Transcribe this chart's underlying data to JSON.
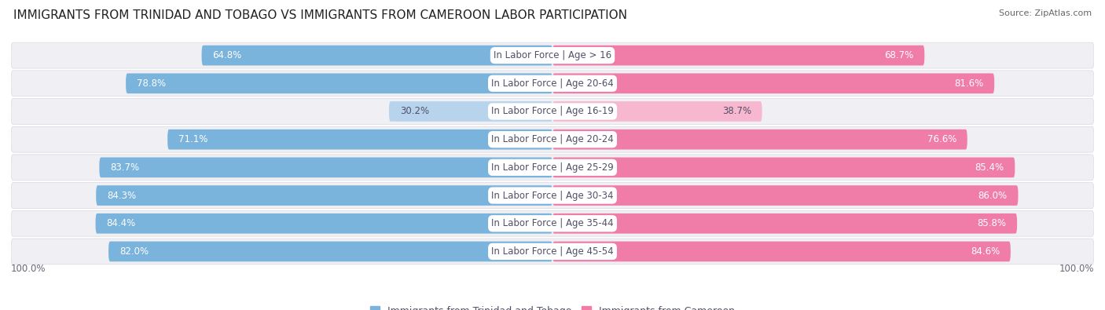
{
  "title": "IMMIGRANTS FROM TRINIDAD AND TOBAGO VS IMMIGRANTS FROM CAMEROON LABOR PARTICIPATION",
  "source": "Source: ZipAtlas.com",
  "categories": [
    "In Labor Force | Age > 16",
    "In Labor Force | Age 20-64",
    "In Labor Force | Age 16-19",
    "In Labor Force | Age 20-24",
    "In Labor Force | Age 25-29",
    "In Labor Force | Age 30-34",
    "In Labor Force | Age 35-44",
    "In Labor Force | Age 45-54"
  ],
  "trinidad_values": [
    64.8,
    78.8,
    30.2,
    71.1,
    83.7,
    84.3,
    84.4,
    82.0
  ],
  "cameroon_values": [
    68.7,
    81.6,
    38.7,
    76.6,
    85.4,
    86.0,
    85.8,
    84.6
  ],
  "trinidad_color": "#7ab3dc",
  "cameroon_color": "#f07ca8",
  "trinidad_color_light": "#b8d4ed",
  "cameroon_color_light": "#f7b8cf",
  "row_bg": "#f0f0f4",
  "row_sep_color": "#d8d8e0",
  "fig_bg": "#ffffff",
  "label_bg": "#ffffff",
  "label_text_color": "#505068",
  "val_color_white": "#ffffff",
  "val_color_dark": "#505068",
  "legend_trinidad": "Immigrants from Trinidad and Tobago",
  "legend_cameroon": "Immigrants from Cameroon",
  "axis_label_left": "100.0%",
  "axis_label_right": "100.0%",
  "max_value": 100.0,
  "title_fontsize": 11,
  "source_fontsize": 8,
  "bar_label_fontsize": 8.5,
  "category_fontsize": 8.5,
  "legend_fontsize": 9
}
